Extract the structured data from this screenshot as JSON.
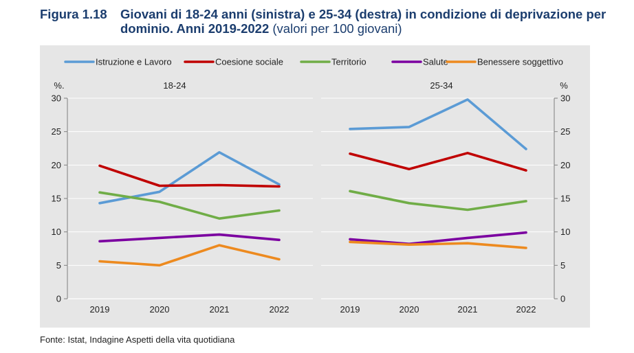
{
  "figure": {
    "number": "Figura 1.18",
    "title_bold": "Giovani di 18-24 anni (sinistra) e 25-34 (destra) in condizione di deprivazione per dominio. Anni 2019-2022",
    "title_normal": "(valori per 100 giovani)"
  },
  "source": "Fonte: Istat, Indagine Aspetti della vita quotidiana",
  "chart_data": [
    {
      "type": "line",
      "panel_title": "18-24",
      "y_unit_label": "%.",
      "categories": [
        "2019",
        "2020",
        "2021",
        "2022"
      ],
      "ylim": [
        0,
        30
      ],
      "yticks": [
        "0",
        "5",
        "10",
        "15",
        "20",
        "25",
        "30"
      ],
      "series": [
        {
          "name": "Istruzione e Lavoro",
          "color": "#5b9bd5",
          "values": [
            14.3,
            16.0,
            21.9,
            17.1
          ]
        },
        {
          "name": "Coesione sociale",
          "color": "#c00000",
          "values": [
            19.9,
            16.9,
            17.0,
            16.8
          ]
        },
        {
          "name": "Territorio",
          "color": "#70ad47",
          "values": [
            15.9,
            14.5,
            12.0,
            13.2
          ]
        },
        {
          "name": "Salute",
          "color": "#7b00a0",
          "values": [
            8.6,
            9.1,
            9.6,
            8.8
          ]
        },
        {
          "name": "Benessere soggettivo",
          "color": "#ed8a1f",
          "values": [
            5.6,
            5.0,
            8.0,
            5.9
          ]
        }
      ]
    },
    {
      "type": "line",
      "panel_title": "25-34",
      "y_unit_label": "%",
      "categories": [
        "2019",
        "2020",
        "2021",
        "2022"
      ],
      "ylim": [
        0,
        30
      ],
      "yticks": [
        "0",
        "5",
        "10",
        "15",
        "20",
        "25",
        "30"
      ],
      "series": [
        {
          "name": "Istruzione e Lavoro",
          "color": "#5b9bd5",
          "values": [
            25.4,
            25.7,
            29.8,
            22.4
          ]
        },
        {
          "name": "Coesione sociale",
          "color": "#c00000",
          "values": [
            21.7,
            19.4,
            21.8,
            19.2
          ]
        },
        {
          "name": "Territorio",
          "color": "#70ad47",
          "values": [
            16.1,
            14.3,
            13.3,
            14.6
          ]
        },
        {
          "name": "Salute",
          "color": "#7b00a0",
          "values": [
            8.9,
            8.2,
            9.1,
            9.9
          ]
        },
        {
          "name": "Benessere soggettivo",
          "color": "#ed8a1f",
          "values": [
            8.5,
            8.1,
            8.3,
            7.6
          ]
        }
      ]
    }
  ]
}
